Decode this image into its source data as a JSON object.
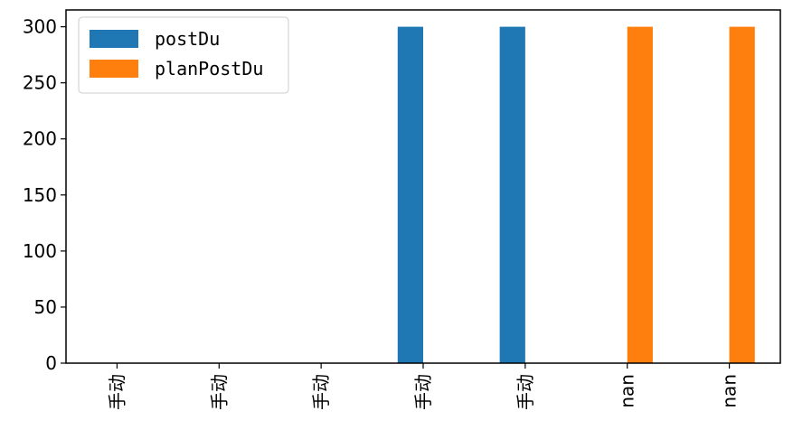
{
  "chart_data": {
    "type": "bar",
    "categories": [
      "手动",
      "手动",
      "手动",
      "手动",
      "手动",
      "nan",
      "nan"
    ],
    "series": [
      {
        "name": "postDu",
        "color": "#1f77b4",
        "values": [
          0,
          0,
          0,
          300,
          300,
          0,
          0
        ]
      },
      {
        "name": "planPostDu",
        "color": "#ff7f0e",
        "values": [
          0,
          0,
          0,
          0,
          0,
          300,
          300
        ]
      }
    ],
    "ylim": [
      0,
      315
    ],
    "yticks": [
      0,
      50,
      100,
      150,
      200,
      250,
      300
    ],
    "xtick_rotation": 90,
    "legend_position": "top-left",
    "grid": false
  }
}
